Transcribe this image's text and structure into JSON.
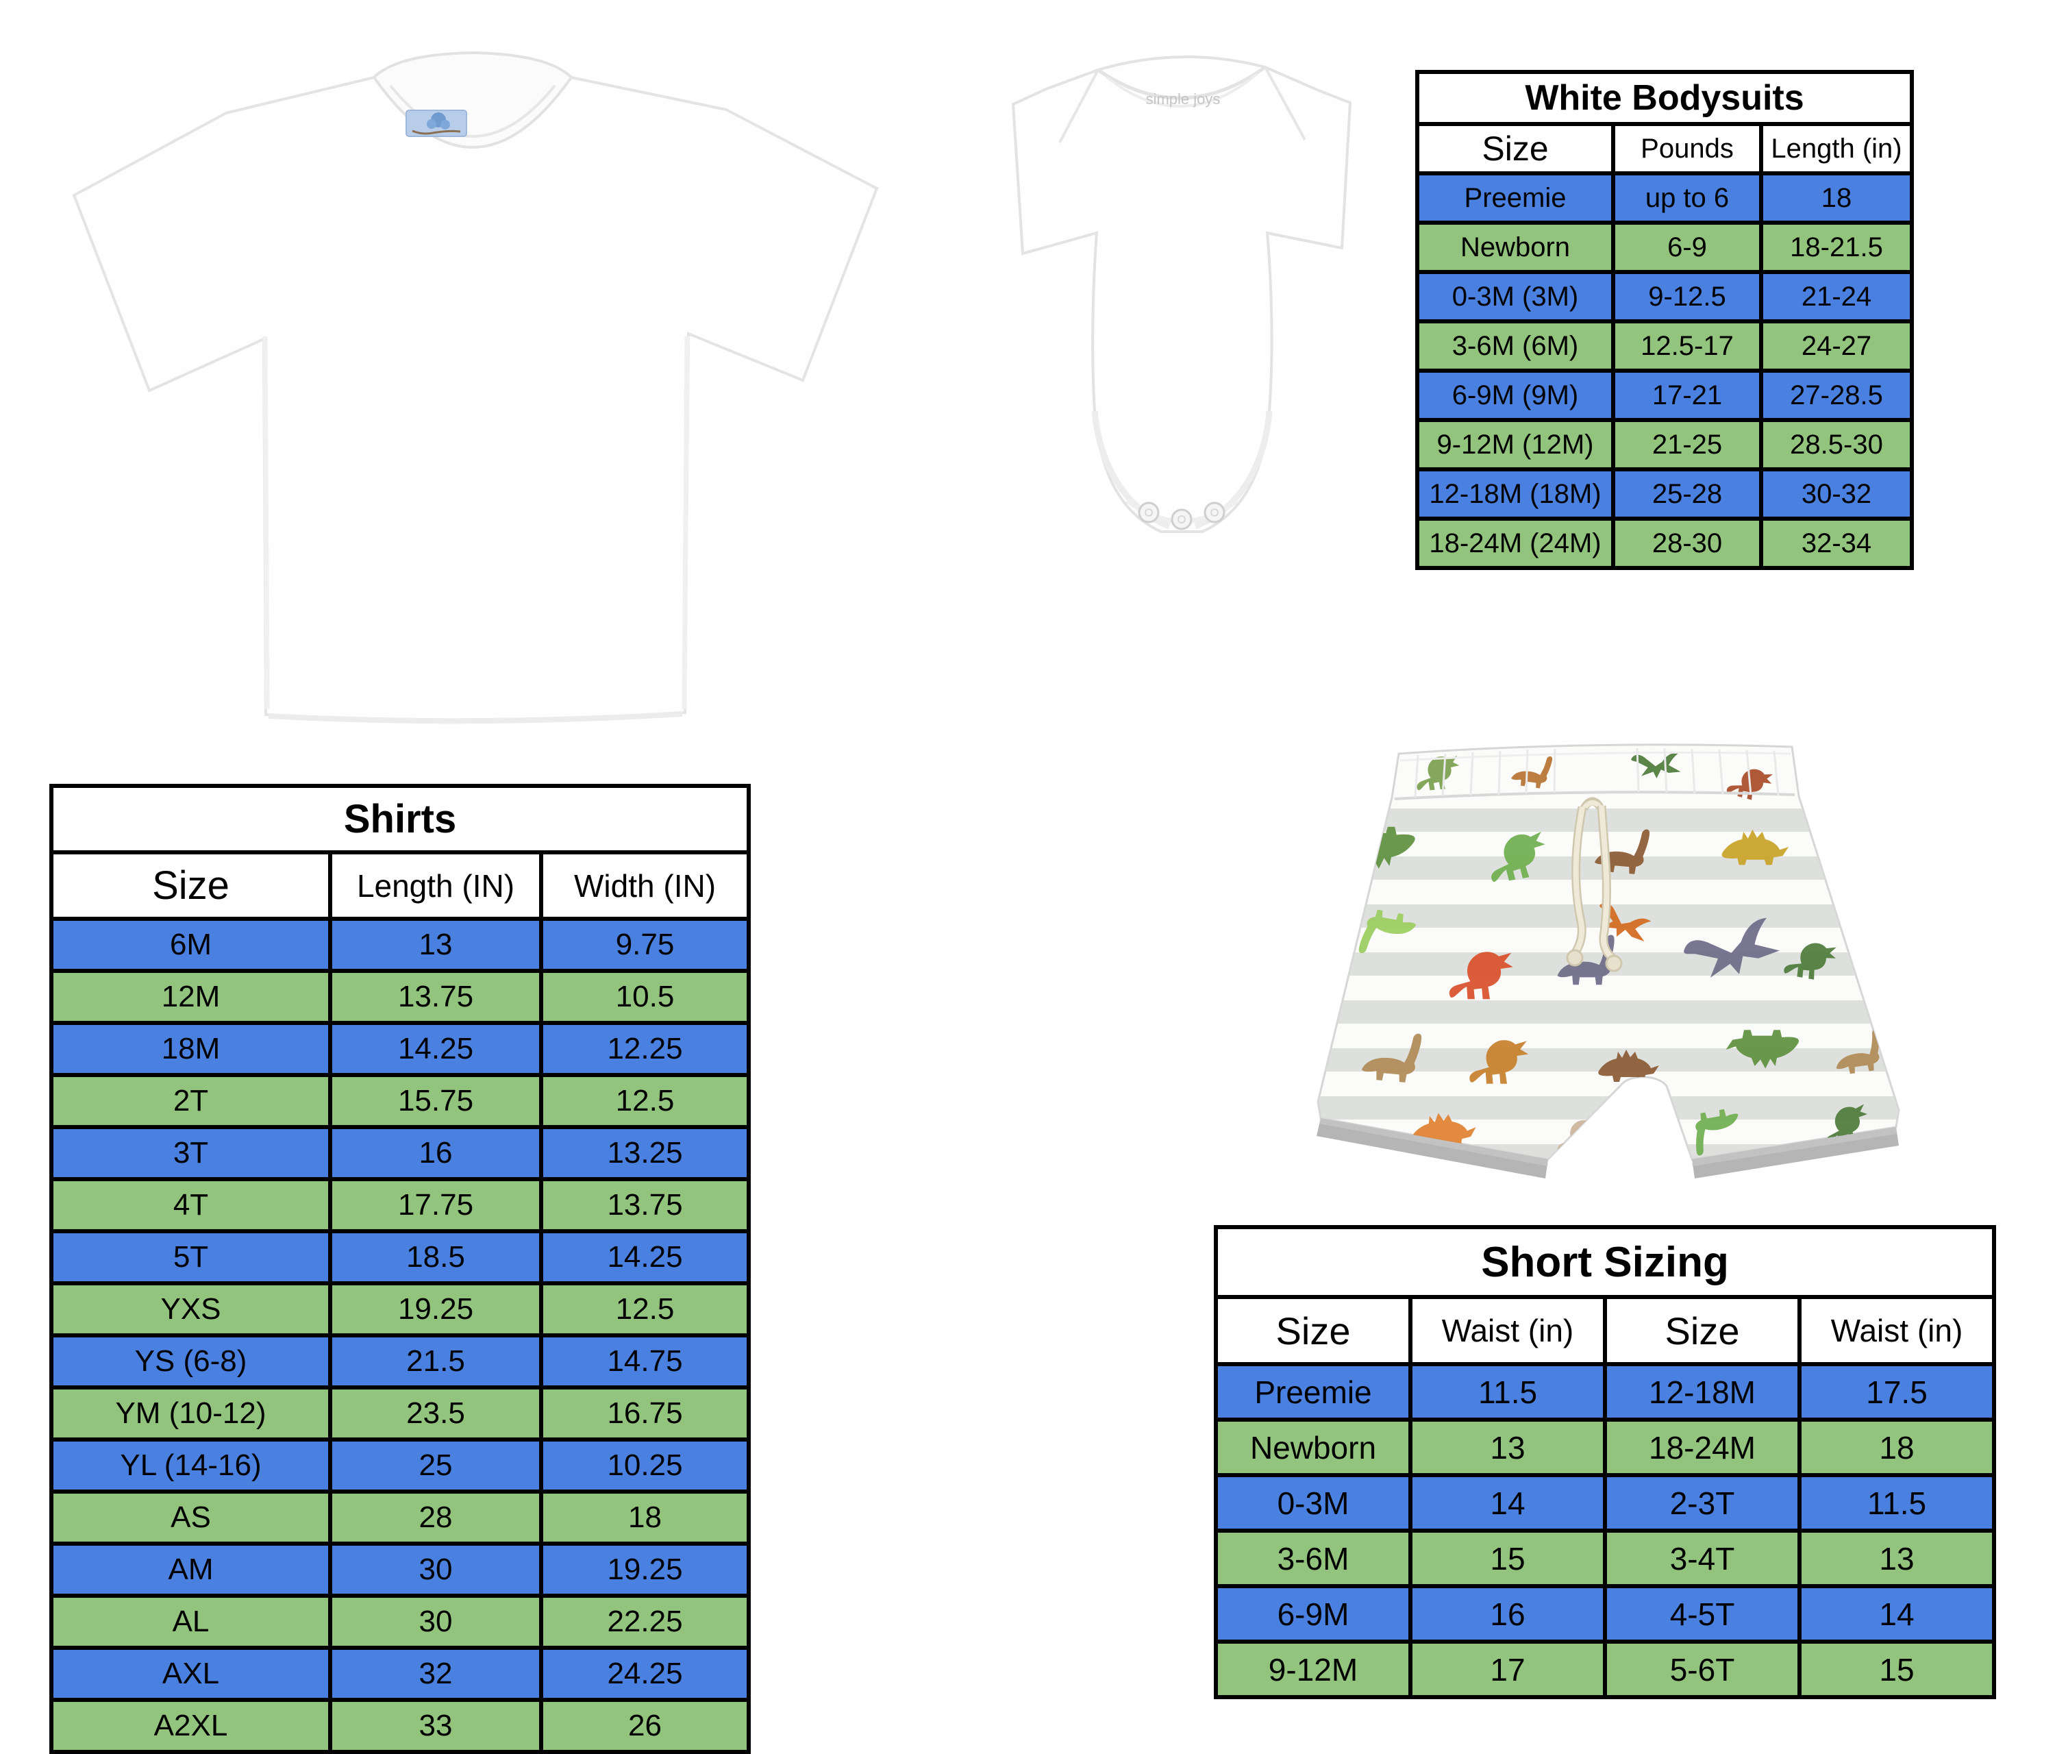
{
  "page": {
    "background": "#ffffff"
  },
  "colors": {
    "row_blue": "#4a81e0",
    "row_green": "#93c47d",
    "table_border": "#000000",
    "grid_artifact": "#dcdcdc",
    "shorts_stripe": "#d8dad7",
    "shorts_hem_gray": "#b5b5b5",
    "drawstring_cream": "#e7e0cd",
    "tshirt_label_blue": "#b7cde9"
  },
  "products": {
    "bodysuit_collar_text": "simple joys"
  },
  "tables": {
    "bodysuits": {
      "title": "White Bodysuits",
      "headers": [
        "Size",
        "Pounds",
        "Length (in)"
      ],
      "rows": [
        [
          "Preemie",
          "up to 6",
          "18"
        ],
        [
          "Newborn",
          "6-9",
          "18-21.5"
        ],
        [
          "0-3M (3M)",
          "9-12.5",
          "21-24"
        ],
        [
          "3-6M (6M)",
          "12.5-17",
          "24-27"
        ],
        [
          "6-9M (9M)",
          "17-21",
          "27-28.5"
        ],
        [
          "9-12M (12M)",
          "21-25",
          "28.5-30"
        ],
        [
          "12-18M (18M)",
          "25-28",
          "30-32"
        ],
        [
          "18-24M (24M)",
          "28-30",
          "32-34"
        ]
      ]
    },
    "shirts": {
      "title": "Shirts",
      "headers": [
        "Size",
        "Length (IN)",
        "Width (IN)"
      ],
      "rows": [
        [
          "6M",
          "13",
          "9.75"
        ],
        [
          "12M",
          "13.75",
          "10.5"
        ],
        [
          "18M",
          "14.25",
          "12.25"
        ],
        [
          "2T",
          "15.75",
          "12.5"
        ],
        [
          "3T",
          "16",
          "13.25"
        ],
        [
          "4T",
          "17.75",
          "13.75"
        ],
        [
          "5T",
          "18.5",
          "14.25"
        ],
        [
          "YXS",
          "19.25",
          "12.5"
        ],
        [
          "YS (6-8)",
          "21.5",
          "14.75"
        ],
        [
          "YM (10-12)",
          "23.5",
          "16.75"
        ],
        [
          "YL (14-16)",
          "25",
          "10.25"
        ],
        [
          "AS",
          "28",
          "18"
        ],
        [
          "AM",
          "30",
          "19.25"
        ],
        [
          "AL",
          "30",
          "22.25"
        ],
        [
          "AXL",
          "32",
          "24.25"
        ],
        [
          "A2XL",
          "33",
          "26"
        ]
      ]
    },
    "short_sizing": {
      "title": "Short Sizing",
      "headers": [
        "Size",
        "Waist (in)",
        "Size",
        "Waist (in)"
      ],
      "rows": [
        [
          "Preemie",
          "11.5",
          "12-18M",
          "17.5"
        ],
        [
          "Newborn",
          "13",
          "18-24M",
          "18"
        ],
        [
          "0-3M",
          "14",
          "2-3T",
          "11.5"
        ],
        [
          "3-6M",
          "15",
          "3-4T",
          "13"
        ],
        [
          "6-9M",
          "16",
          "4-5T",
          "14"
        ],
        [
          "9-12M",
          "17",
          "5-6T",
          "15"
        ]
      ]
    }
  }
}
